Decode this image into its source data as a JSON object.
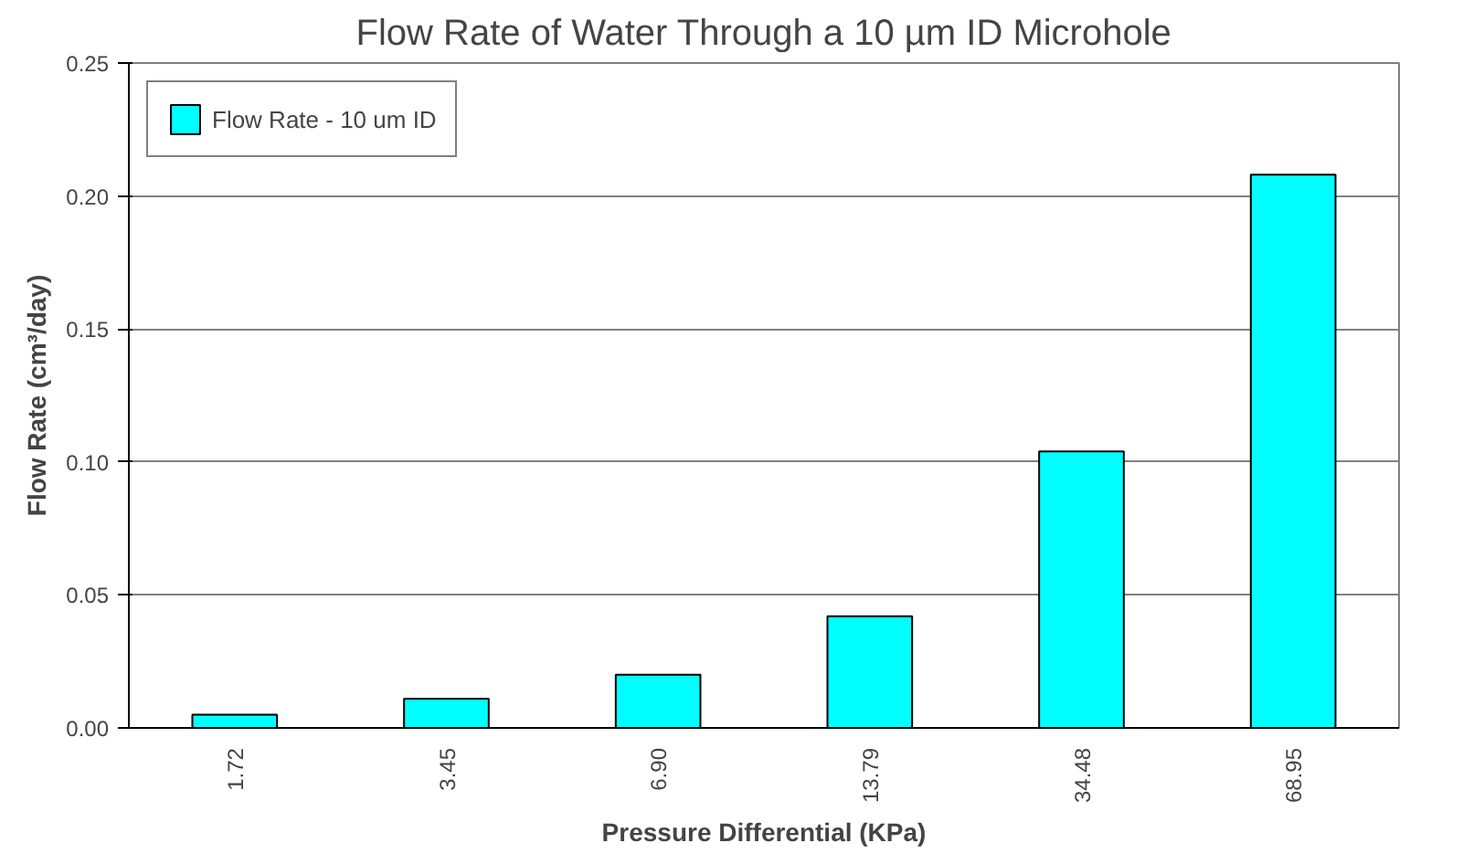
{
  "chart_data": {
    "type": "bar",
    "title": "Flow Rate of Water Through a 10 µm ID Microhole",
    "xlabel": "Pressure Differential (KPa)",
    "ylabel": "Flow Rate (cm³/day)",
    "categories": [
      "1.72",
      "3.45",
      "6.90",
      "13.79",
      "34.48",
      "68.95"
    ],
    "series": [
      {
        "name": "Flow Rate - 10 um ID",
        "color": "#00ffff",
        "values": [
          0.005,
          0.011,
          0.02,
          0.042,
          0.104,
          0.208
        ]
      }
    ],
    "ylim": [
      0,
      0.25
    ],
    "yticks": [
      {
        "value": 0,
        "label": "0.00"
      },
      {
        "value": 0.05,
        "label": "0.05"
      },
      {
        "value": 0.1,
        "label": "0.10"
      },
      {
        "value": 0.15,
        "label": "0.15"
      },
      {
        "value": 0.2,
        "label": "0.20"
      },
      {
        "value": 0.25,
        "label": "0.25"
      }
    ],
    "grid": "y",
    "legend": "top left"
  }
}
